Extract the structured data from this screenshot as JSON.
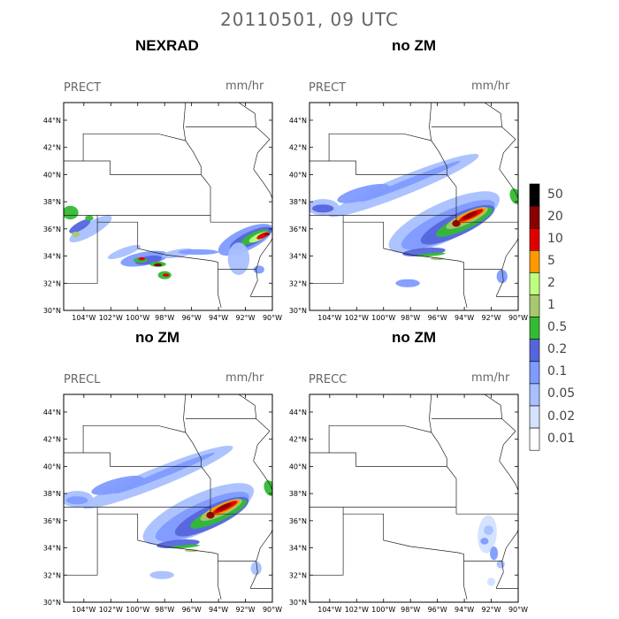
{
  "title": "20110501, 09 UTC",
  "lat_ticks": [
    "44°N",
    "42°N",
    "40°N",
    "38°N",
    "36°N",
    "34°N",
    "32°N",
    "30°N"
  ],
  "lon_ticks": [
    "104°W",
    "102°W",
    "100°W",
    "98°W",
    "96°W",
    "94°W",
    "92°W",
    "90°W"
  ],
  "panels": [
    {
      "title": "NEXRAD",
      "label": "PRECT",
      "units": "mm/hr"
    },
    {
      "title": "no ZM",
      "label": "PRECT",
      "units": "mm/hr"
    },
    {
      "title": "no ZM",
      "label": "PRECL",
      "units": "mm/hr"
    },
    {
      "title": "no ZM",
      "label": "PRECC",
      "units": "mm/hr"
    }
  ],
  "legend": {
    "labels": [
      "50",
      "20",
      "10",
      "5",
      "2",
      "1",
      "0.5",
      "0.2",
      "0.1",
      "0.05",
      "0.02",
      "0.01"
    ],
    "colors": [
      "#000000",
      "#8b0000",
      "#e00000",
      "#ff9900",
      "#bfff7f",
      "#a8c870",
      "#33bb33",
      "#5566dd",
      "#7f9bff",
      "#a8c0ff",
      "#d2e2ff",
      "#ffffff"
    ]
  }
}
